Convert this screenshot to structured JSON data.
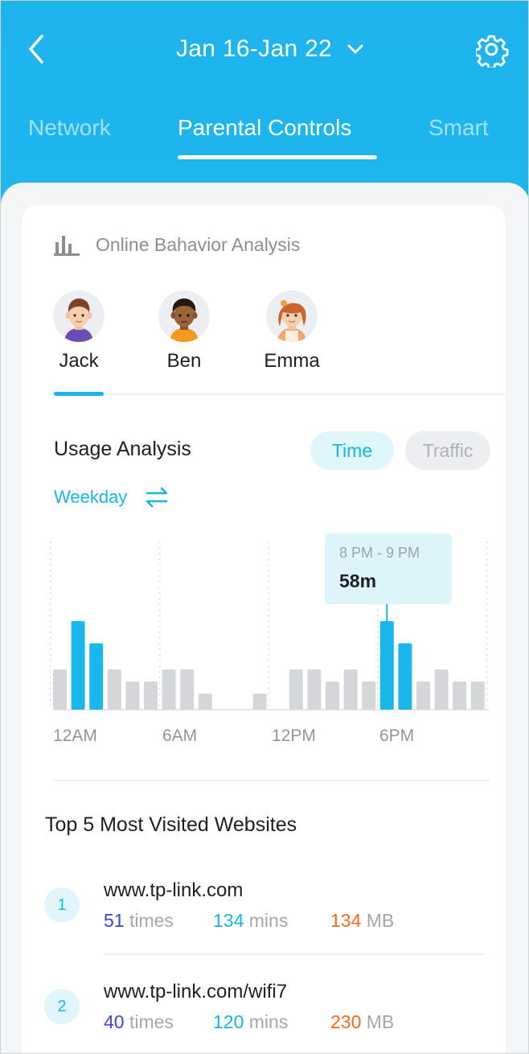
{
  "header": {
    "date_range": "Jan 16-Jan 22",
    "back_icon": "chevron-left-icon",
    "dropdown_icon": "chevron-down-icon",
    "settings_icon": "gear-icon"
  },
  "tabs": [
    {
      "label": "Network",
      "active": false
    },
    {
      "label": "Parental Controls",
      "active": true
    },
    {
      "label": "Smart",
      "active": false
    }
  ],
  "analysis": {
    "icon": "bar-chart-icon",
    "title": "Online Bahavior Analysis"
  },
  "profiles": [
    {
      "name": "Jack",
      "selected": true
    },
    {
      "name": "Ben",
      "selected": false
    },
    {
      "name": "Emma",
      "selected": false
    }
  ],
  "usage": {
    "title": "Usage Analysis",
    "toggle": {
      "time_label": "Time",
      "traffic_label": "Traffic",
      "selected": "Time"
    },
    "period": {
      "label": "Weekday",
      "icon": "swap-icon"
    }
  },
  "chart_data": {
    "type": "bar",
    "x_ticks": [
      "12AM",
      "6AM",
      "12PM",
      "6PM"
    ],
    "categories": [
      "0",
      "1",
      "2",
      "3",
      "4",
      "5",
      "6",
      "7",
      "8",
      "9",
      "10",
      "11",
      "12",
      "13",
      "14",
      "15",
      "16",
      "17",
      "18",
      "19",
      "20",
      "21",
      "22",
      "23"
    ],
    "values": [
      2,
      4.4,
      3.3,
      2,
      1.4,
      1.4,
      2,
      2,
      0.8,
      0,
      0,
      0.8,
      0,
      2,
      2,
      1.4,
      2,
      1.4,
      4.4,
      3.3,
      1.4,
      2,
      1.4,
      1.4
    ],
    "highlighted_hours": [
      1,
      2,
      18,
      19
    ],
    "highlight_color": "#19b7ec",
    "base_color": "#d4d6d9",
    "tooltip": {
      "range": "8 PM - 9 PM",
      "value": "58m"
    }
  },
  "top_sites": {
    "title": "Top 5 Most Visited Websites",
    "items": [
      {
        "rank": "1",
        "url": "www.tp-link.com",
        "times": "51",
        "times_unit": "times",
        "mins": "134",
        "mins_unit": "mins",
        "data": "134",
        "data_unit": "MB"
      },
      {
        "rank": "2",
        "url": "www.tp-link.com/wifi7",
        "times": "40",
        "times_unit": "times",
        "mins": "120",
        "mins_unit": "mins",
        "data": "230",
        "data_unit": "MB"
      }
    ]
  }
}
